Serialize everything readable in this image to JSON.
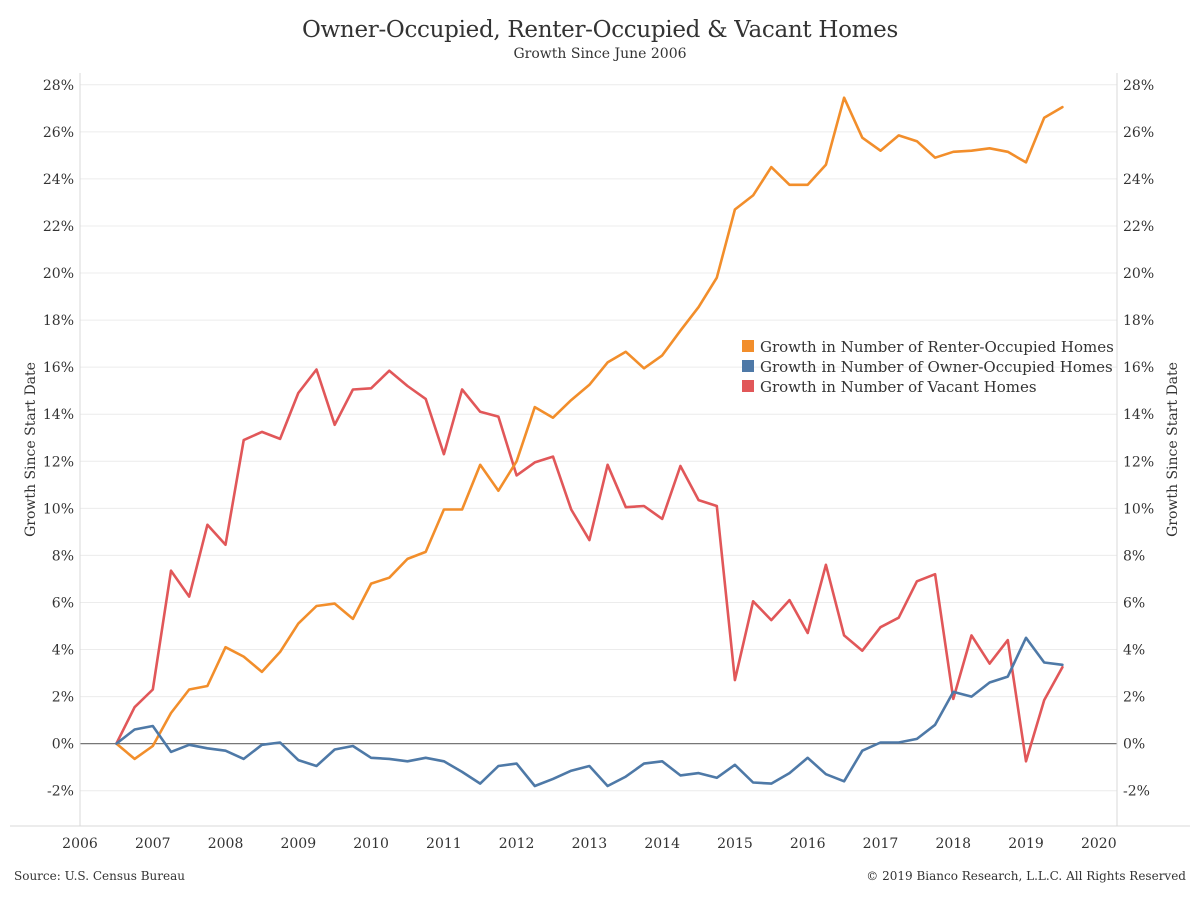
{
  "header": {
    "title": "Owner-Occupied, Renter-Occupied & Vacant Homes",
    "subtitle": "Growth Since June 2006"
  },
  "footer": {
    "source": "Source: U.S. Census Bureau",
    "copyright": "© 2019 Bianco Research, L.L.C. All Rights Reserved"
  },
  "chart_data": {
    "type": "line",
    "title": "Owner-Occupied, Renter-Occupied & Vacant Homes",
    "subtitle": "Growth Since June 2006",
    "xlabel": "",
    "ylabel": "Growth Since Start Date",
    "ylabel_right": "Growth Since Start Date",
    "xlim": [
      2006,
      2020.25
    ],
    "ylim": [
      -3.5,
      28.5
    ],
    "x_ticks": [
      2006,
      2007,
      2008,
      2009,
      2010,
      2011,
      2012,
      2013,
      2014,
      2015,
      2016,
      2017,
      2018,
      2019,
      2020
    ],
    "y_ticks": [
      -2,
      0,
      2,
      4,
      6,
      8,
      10,
      12,
      14,
      16,
      18,
      20,
      22,
      24,
      26,
      28
    ],
    "y_tick_suffix": "%",
    "grid": true,
    "zero_line": true,
    "legend_position": "right",
    "x": [
      "2006-Q2",
      "2006-Q3",
      "2006-Q4",
      "2007-Q1",
      "2007-Q2",
      "2007-Q3",
      "2007-Q4",
      "2008-Q1",
      "2008-Q2",
      "2008-Q3",
      "2008-Q4",
      "2009-Q1",
      "2009-Q2",
      "2009-Q3",
      "2009-Q4",
      "2010-Q1",
      "2010-Q2",
      "2010-Q3",
      "2010-Q4",
      "2011-Q1",
      "2011-Q2",
      "2011-Q3",
      "2011-Q4",
      "2012-Q1",
      "2012-Q2",
      "2012-Q3",
      "2012-Q4",
      "2013-Q1",
      "2013-Q2",
      "2013-Q3",
      "2013-Q4",
      "2014-Q1",
      "2014-Q2",
      "2014-Q3",
      "2014-Q4",
      "2015-Q1",
      "2015-Q2",
      "2015-Q3",
      "2015-Q4",
      "2016-Q1",
      "2016-Q2",
      "2016-Q3",
      "2016-Q4",
      "2017-Q1",
      "2017-Q2",
      "2017-Q3",
      "2017-Q4",
      "2018-Q1",
      "2018-Q2",
      "2018-Q3",
      "2018-Q4",
      "2019-Q1",
      "2019-Q2"
    ],
    "x_numeric": [
      2006.5,
      2006.75,
      2007.0,
      2007.25,
      2007.5,
      2007.75,
      2008.0,
      2008.25,
      2008.5,
      2008.75,
      2009.0,
      2009.25,
      2009.5,
      2009.75,
      2010.0,
      2010.25,
      2010.5,
      2010.75,
      2011.0,
      2011.25,
      2011.5,
      2011.75,
      2012.0,
      2012.25,
      2012.5,
      2012.75,
      2013.0,
      2013.25,
      2013.5,
      2013.75,
      2014.0,
      2014.25,
      2014.5,
      2014.75,
      2015.0,
      2015.25,
      2015.5,
      2015.75,
      2016.0,
      2016.25,
      2016.5,
      2016.75,
      2017.0,
      2017.25,
      2017.5,
      2017.75,
      2018.0,
      2018.25,
      2018.5,
      2018.75,
      2019.0,
      2019.25,
      2019.5
    ],
    "series": [
      {
        "name": "Growth in Number of Renter-Occupied Homes",
        "color": "#f28e2b",
        "values": [
          0.0,
          -0.65,
          -0.1,
          1.3,
          2.3,
          2.45,
          4.1,
          3.7,
          3.05,
          3.9,
          5.1,
          5.85,
          5.95,
          5.3,
          6.8,
          7.05,
          7.85,
          8.15,
          9.95,
          9.95,
          11.85,
          10.75,
          12.0,
          14.3,
          13.85,
          14.6,
          15.25,
          16.2,
          16.65,
          15.95,
          16.5,
          17.55,
          18.55,
          19.8,
          22.7,
          23.3,
          24.5,
          23.75,
          23.75,
          24.6,
          27.45,
          25.75,
          25.2,
          25.85,
          25.6,
          24.9,
          25.15,
          25.2,
          25.3,
          25.15,
          24.7,
          26.6,
          27.05
        ]
      },
      {
        "name": "Growth in Number of Owner-Occupied Homes",
        "color": "#4e79a7",
        "values": [
          0.0,
          0.6,
          0.75,
          -0.35,
          -0.05,
          -0.2,
          -0.3,
          -0.65,
          -0.05,
          0.05,
          -0.7,
          -0.95,
          -0.25,
          -0.1,
          -0.6,
          -0.65,
          -0.75,
          -0.6,
          -0.75,
          -1.2,
          -1.7,
          -0.95,
          -0.85,
          -1.8,
          -1.5,
          -1.15,
          -0.95,
          -1.8,
          -1.4,
          -0.85,
          -0.75,
          -1.35,
          -1.25,
          -1.45,
          -0.9,
          -1.65,
          -1.7,
          -1.25,
          -0.6,
          -1.3,
          -1.6,
          -0.3,
          0.05,
          0.05,
          0.2,
          0.8,
          2.2,
          2.0,
          2.6,
          2.85,
          4.5,
          3.45,
          3.35
        ]
      },
      {
        "name": "Growth in Number of Vacant Homes",
        "color": "#e15759",
        "values": [
          0.0,
          1.55,
          2.3,
          7.35,
          6.25,
          9.3,
          8.45,
          12.9,
          13.25,
          12.95,
          14.9,
          15.9,
          13.55,
          15.05,
          15.1,
          15.85,
          15.2,
          14.65,
          12.3,
          15.05,
          14.1,
          13.9,
          11.4,
          11.95,
          12.2,
          9.95,
          8.65,
          11.85,
          10.05,
          10.1,
          9.55,
          11.8,
          10.35,
          10.1,
          2.7,
          6.05,
          5.25,
          6.1,
          4.7,
          7.6,
          4.6,
          3.95,
          4.95,
          5.35,
          6.9,
          7.2,
          1.9,
          4.6,
          3.4,
          4.4,
          -0.75,
          1.85,
          3.25
        ]
      }
    ]
  }
}
